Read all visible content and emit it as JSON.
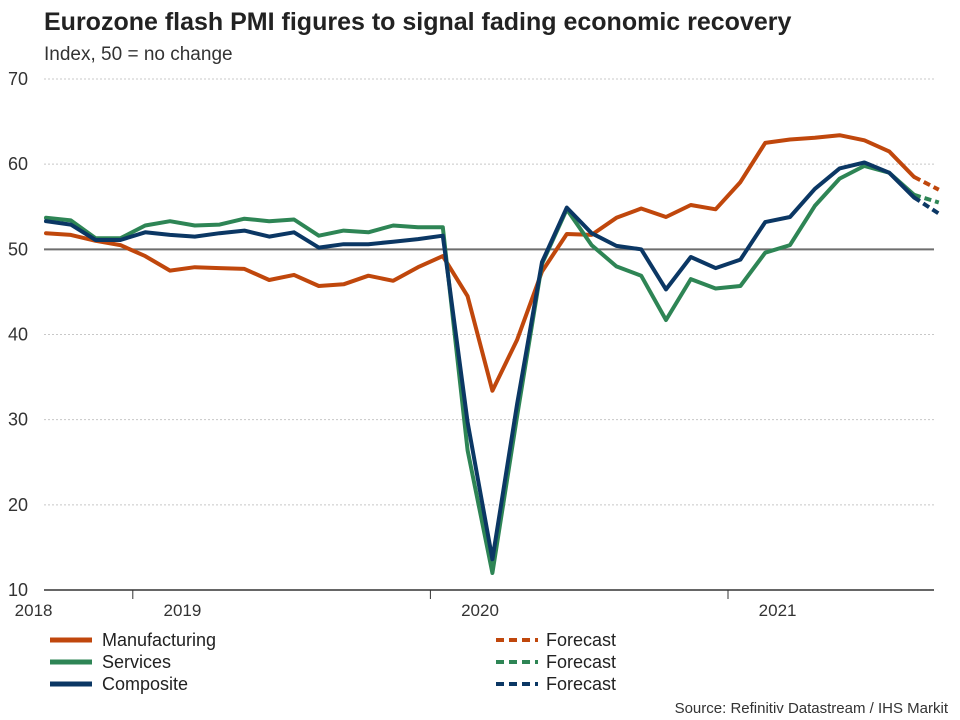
{
  "title": "Eurozone flash PMI figures to signal fading economic recovery",
  "subtitle": "Index, 50 = no change",
  "source": "Source: Refinitiv Datastream / IHS Markit",
  "chart_data": {
    "type": "line",
    "title": "Eurozone flash PMI figures to signal fading economic recovery",
    "subtitle": "Index, 50 = no change",
    "xlabel": "",
    "ylabel": "Index, 50 = no change",
    "ylim": [
      10,
      70
    ],
    "yticks": [
      10,
      20,
      30,
      40,
      50,
      60,
      70
    ],
    "reference_line": 50,
    "x_start": "2018-03",
    "x_end": "2021-06",
    "year_labels": [
      {
        "label": "2018",
        "index": -0.5
      },
      {
        "label": "2019",
        "index": 5.5
      },
      {
        "label": "2020",
        "index": 17.5
      },
      {
        "label": "2021",
        "index": 29.5
      }
    ],
    "year_boundaries": [
      3.5,
      15.5,
      27.5
    ],
    "legend": [
      "Manufacturing",
      "Services",
      "Composite",
      "Forecast",
      "Forecast",
      "Forecast"
    ],
    "series": [
      {
        "name": "Manufacturing",
        "color": "#c0470c",
        "values": [
          51.9,
          51.7,
          51.0,
          50.5,
          49.2,
          47.5,
          47.9,
          47.8,
          47.7,
          46.4,
          47.0,
          45.7,
          45.9,
          46.9,
          46.3,
          47.9,
          49.2,
          44.5,
          33.4,
          39.4,
          47.4,
          51.8,
          51.7,
          53.7,
          54.8,
          53.8,
          55.2,
          54.7,
          57.9,
          62.5,
          62.9,
          63.1,
          63.4,
          62.8,
          61.5,
          58.5
        ],
        "forecast": [
          58.5,
          57.0
        ]
      },
      {
        "name": "Services",
        "color": "#2e8555",
        "values": [
          53.7,
          53.4,
          51.3,
          51.3,
          52.8,
          53.3,
          52.8,
          52.9,
          53.6,
          53.3,
          53.5,
          51.6,
          52.2,
          52.0,
          52.8,
          52.6,
          52.6,
          26.4,
          12.0,
          30.5,
          48.3,
          54.7,
          50.5,
          48.0,
          46.9,
          41.7,
          46.5,
          45.4,
          45.7,
          49.6,
          50.5,
          55.1,
          58.3,
          59.8,
          59.0,
          56.4
        ],
        "forecast": [
          56.4,
          55.5
        ]
      },
      {
        "name": "Composite",
        "color": "#0b3764",
        "values": [
          53.3,
          52.9,
          51.1,
          51.1,
          52.0,
          51.7,
          51.5,
          51.9,
          52.2,
          51.5,
          52.0,
          50.2,
          50.6,
          50.6,
          50.9,
          51.2,
          51.6,
          29.7,
          13.6,
          31.9,
          48.5,
          54.9,
          51.9,
          50.4,
          50.0,
          45.3,
          49.1,
          47.8,
          48.8,
          53.2,
          53.8,
          57.1,
          59.5,
          60.2,
          59.0,
          56.1
        ],
        "forecast": [
          56.1,
          54.2
        ]
      }
    ]
  }
}
